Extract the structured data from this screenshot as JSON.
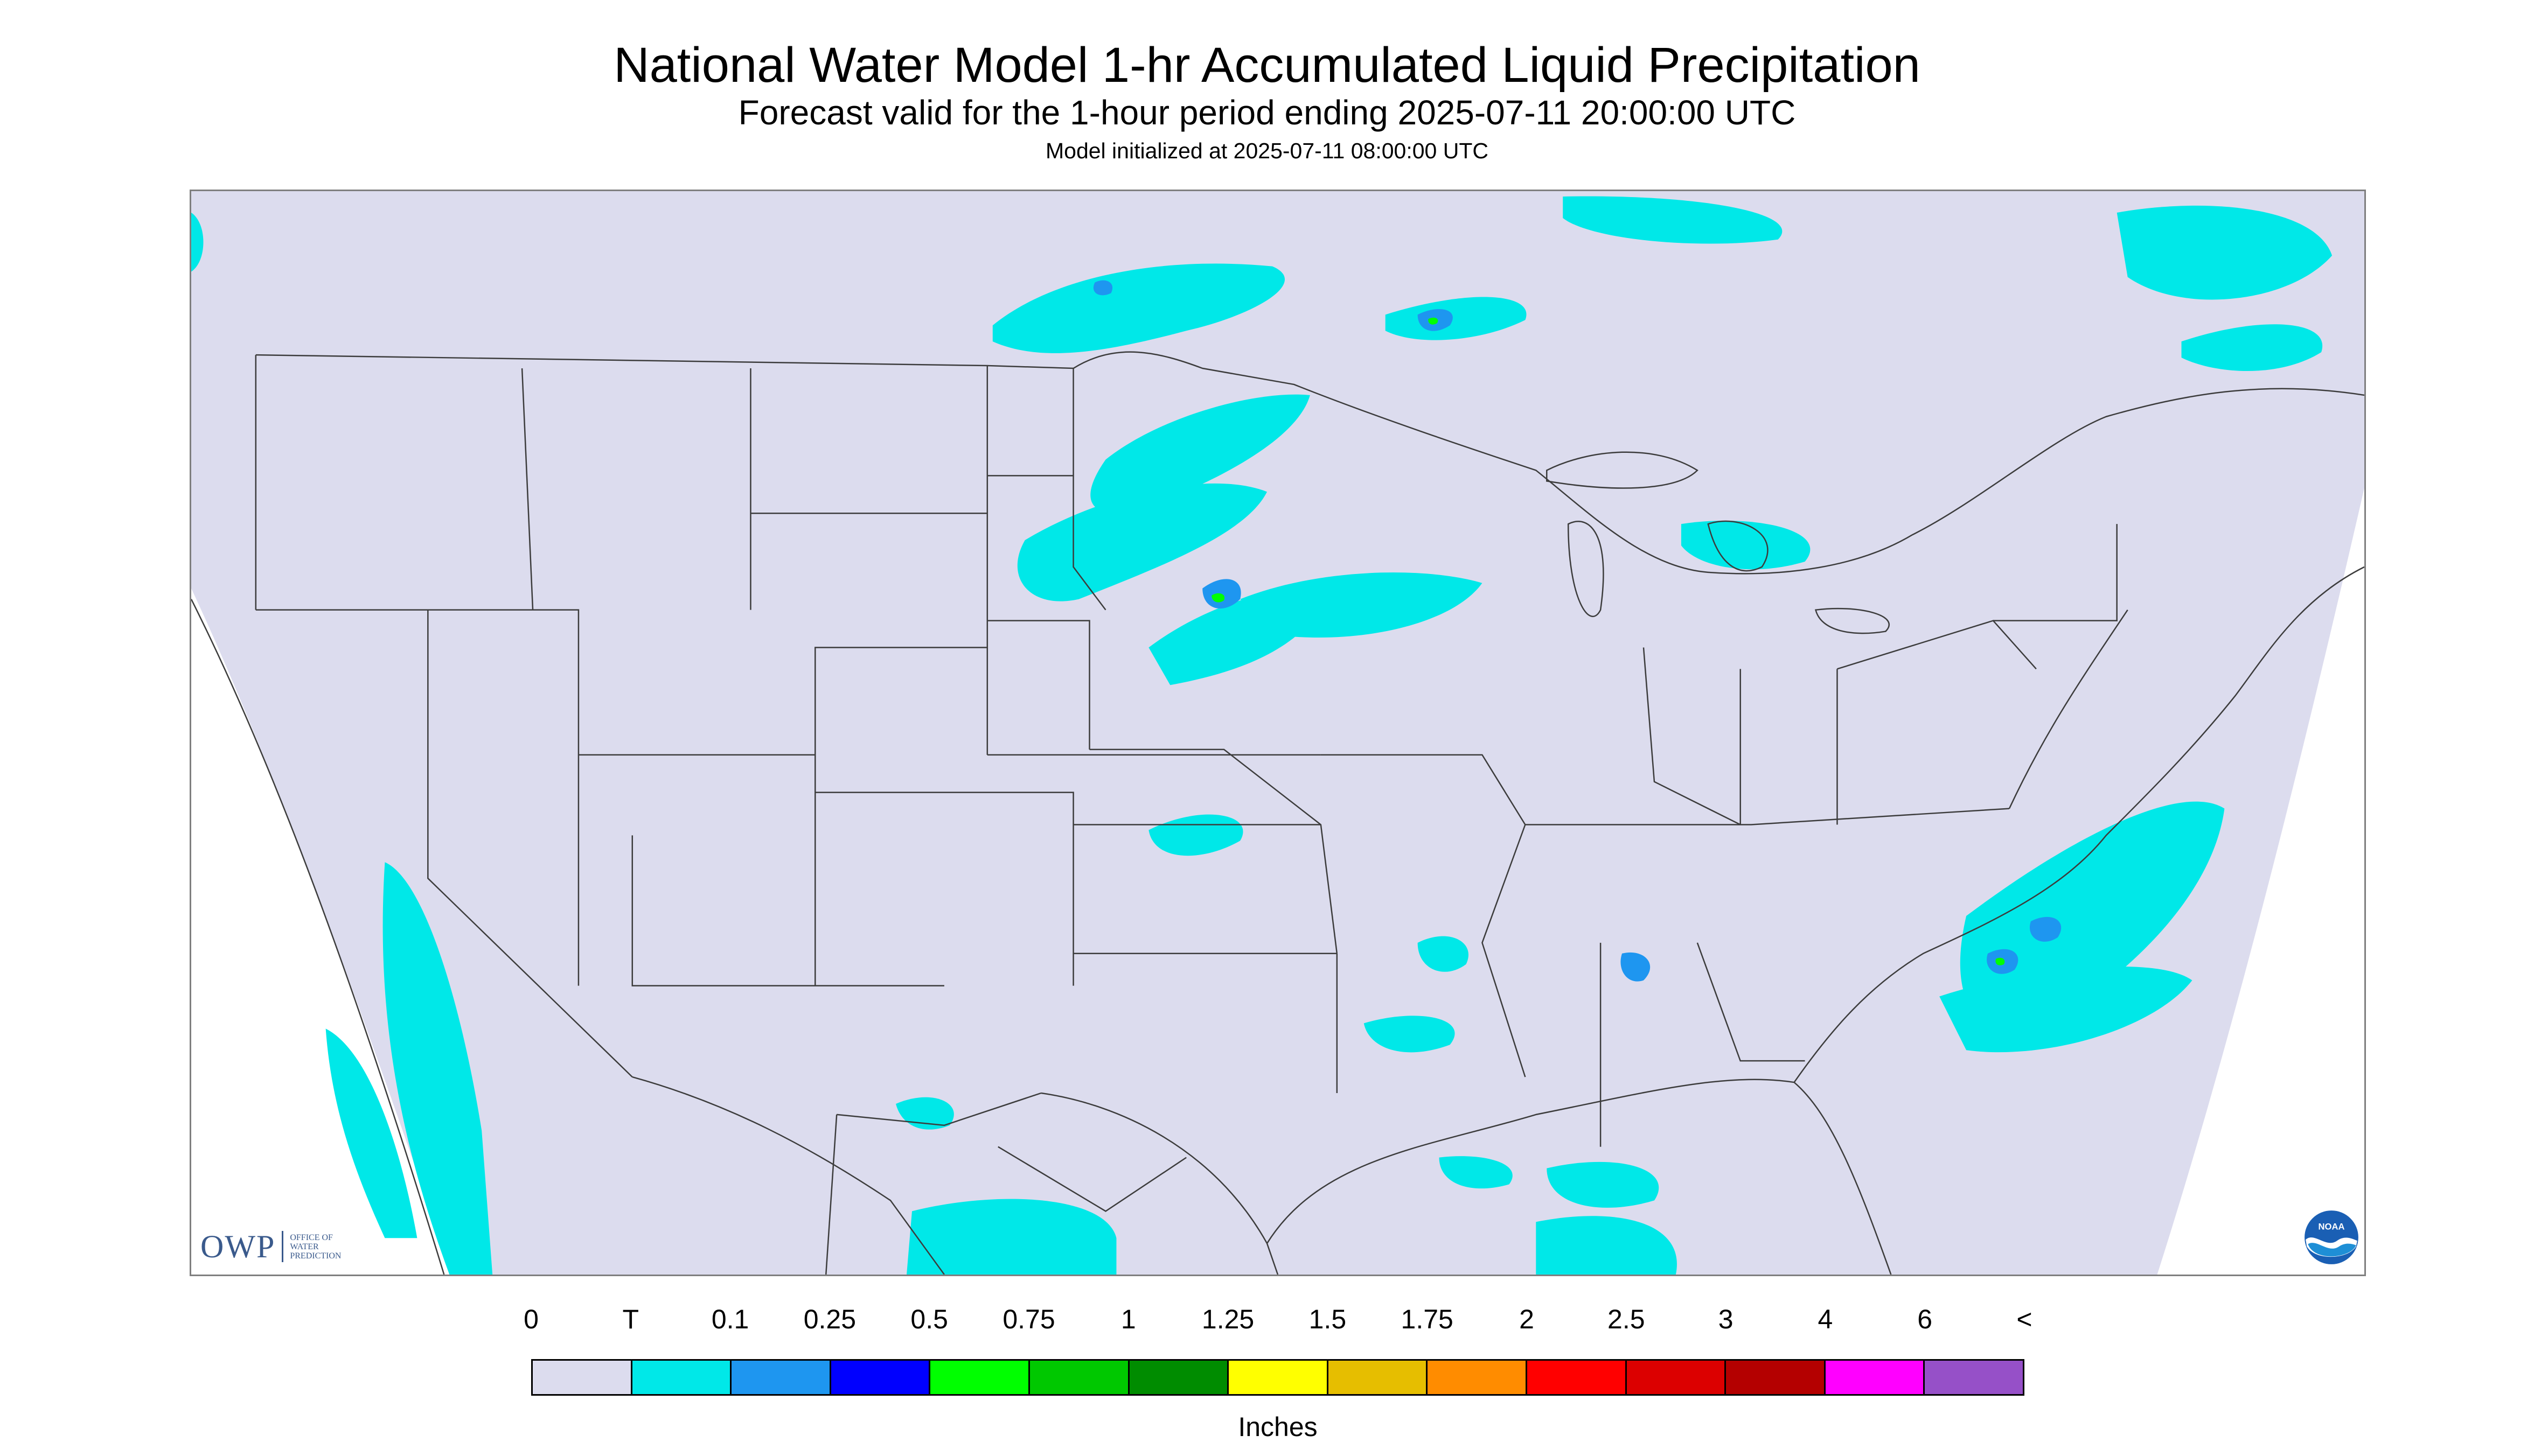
{
  "header": {
    "title": "National Water Model 1-hr Accumulated Liquid Precipitation",
    "subtitle": "Forecast valid for the 1-hour period ending 2025-07-11 20:00:00 UTC",
    "init": "Model initialized at 2025-07-11 08:00:00 UTC"
  },
  "map": {
    "background_color": "#dcdcee",
    "outside_color": "#ffffff",
    "boundary_color": "#3c3c3c",
    "frame_color": "#7f7f7f"
  },
  "logos": {
    "owp_letters": "OWP",
    "owp_words": "OFFICE OF\nWATER\nPREDICTION",
    "noaa_text": "NOAA"
  },
  "legend": {
    "labels": [
      "0",
      "T",
      "0.1",
      "0.25",
      "0.5",
      "0.75",
      "1",
      "1.25",
      "1.5",
      "1.75",
      "2",
      "2.5",
      "3",
      "4",
      "6",
      "<"
    ],
    "colors": [
      "#dcdcee",
      "#00e8e8",
      "#1e96f0",
      "#0000ff",
      "#00ff00",
      "#00c800",
      "#008c00",
      "#ffff00",
      "#e6be00",
      "#ff8c00",
      "#ff0000",
      "#dc0000",
      "#b40000",
      "#ff00ff",
      "#9650c8"
    ],
    "units": "Inches"
  }
}
